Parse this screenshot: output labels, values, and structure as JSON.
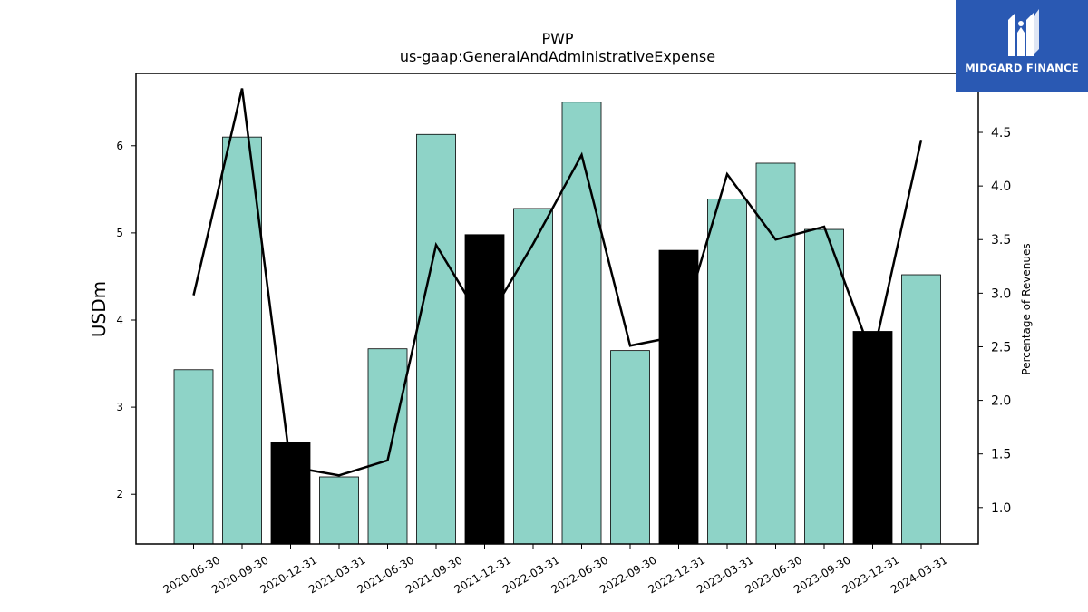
{
  "title": "PWP",
  "subtitle": "us-gaap:GeneralAndAdministrativeExpense",
  "logo": {
    "text": "MIDGARD FINANCE",
    "icon": "midgard-logo-icon",
    "background": "#2a59b3"
  },
  "colors": {
    "bar_default": "#8ed3c7",
    "bar_highlight": "#000000",
    "line": "#000000"
  },
  "chart_data": {
    "type": "bar",
    "categories": [
      "2020-06-30",
      "2020-09-30",
      "2020-12-31",
      "2021-03-31",
      "2021-06-30",
      "2021-09-30",
      "2021-12-31",
      "2022-03-31",
      "2022-06-30",
      "2022-09-30",
      "2022-12-31",
      "2023-03-31",
      "2023-06-30",
      "2023-09-30",
      "2023-12-31",
      "2024-03-31"
    ],
    "ylabel": "USDm",
    "y2label": "Percentage of Revenues",
    "ylim": [
      1.43,
      6.83
    ],
    "y2lim": [
      0.66,
      5.05
    ],
    "yticks": [
      "2",
      "3",
      "4",
      "5",
      "6"
    ],
    "y2ticks": [
      "1.0",
      "1.5",
      "2.0",
      "2.5",
      "3.0",
      "3.5",
      "4.0",
      "4.5"
    ],
    "series": [
      {
        "kind": "bar",
        "values": [
          3.43,
          6.1,
          2.6,
          2.2,
          3.67,
          6.13,
          4.98,
          5.28,
          6.5,
          3.65,
          4.8,
          5.39,
          5.8,
          5.04,
          3.87,
          4.52
        ],
        "highlight": [
          false,
          false,
          true,
          false,
          false,
          false,
          true,
          false,
          false,
          false,
          true,
          false,
          false,
          false,
          true,
          false
        ]
      },
      {
        "kind": "line",
        "axis": "right",
        "values": [
          2.98,
          4.91,
          1.38,
          1.3,
          1.44,
          3.45,
          2.7,
          3.46,
          4.29,
          2.51,
          2.6,
          4.11,
          3.5,
          3.62,
          2.4,
          4.43
        ]
      }
    ]
  }
}
